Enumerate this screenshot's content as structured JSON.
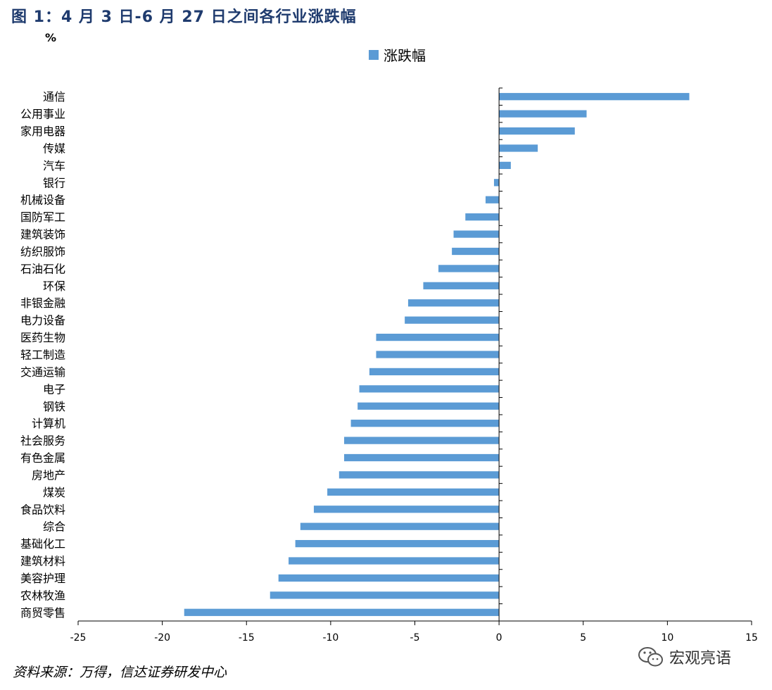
{
  "title": "图 1：4 月 3 日-6 月 27 日之间各行业涨跌幅",
  "unit": "%",
  "source": "资料来源：万得，信达证券研发中心",
  "watermark": "宏观亮语",
  "colors": {
    "bar": "#5b9bd5",
    "title": "#1f3b6e"
  },
  "chart_data": {
    "type": "bar",
    "orientation": "horizontal",
    "title": "",
    "xlabel": "",
    "ylabel": "%",
    "legend": "top-center",
    "grid": false,
    "xlim": [
      -25,
      15
    ],
    "xticks": [
      -25,
      -20,
      -15,
      -10,
      -5,
      0,
      5,
      10,
      15
    ],
    "categories": [
      "通信",
      "公用事业",
      "家用电器",
      "传媒",
      "汽车",
      "银行",
      "机械设备",
      "国防军工",
      "建筑装饰",
      "纺织服饰",
      "石油石化",
      "环保",
      "非银金融",
      "电力设备",
      "医药生物",
      "轻工制造",
      "交通运输",
      "电子",
      "钢铁",
      "计算机",
      "社会服务",
      "有色金属",
      "房地产",
      "煤炭",
      "食品饮料",
      "综合",
      "基础化工",
      "建筑材料",
      "美容护理",
      "农林牧渔",
      "商贸零售"
    ],
    "series": [
      {
        "name": "涨跌幅",
        "values": [
          11.3,
          5.2,
          4.5,
          2.3,
          0.7,
          -0.3,
          -0.8,
          -2.0,
          -2.7,
          -2.8,
          -3.6,
          -4.5,
          -5.4,
          -5.6,
          -7.3,
          -7.3,
          -7.7,
          -8.3,
          -8.4,
          -8.8,
          -9.2,
          -9.2,
          -9.5,
          -10.2,
          -11.0,
          -11.8,
          -12.1,
          -12.5,
          -13.1,
          -13.6,
          -18.7
        ]
      }
    ]
  }
}
